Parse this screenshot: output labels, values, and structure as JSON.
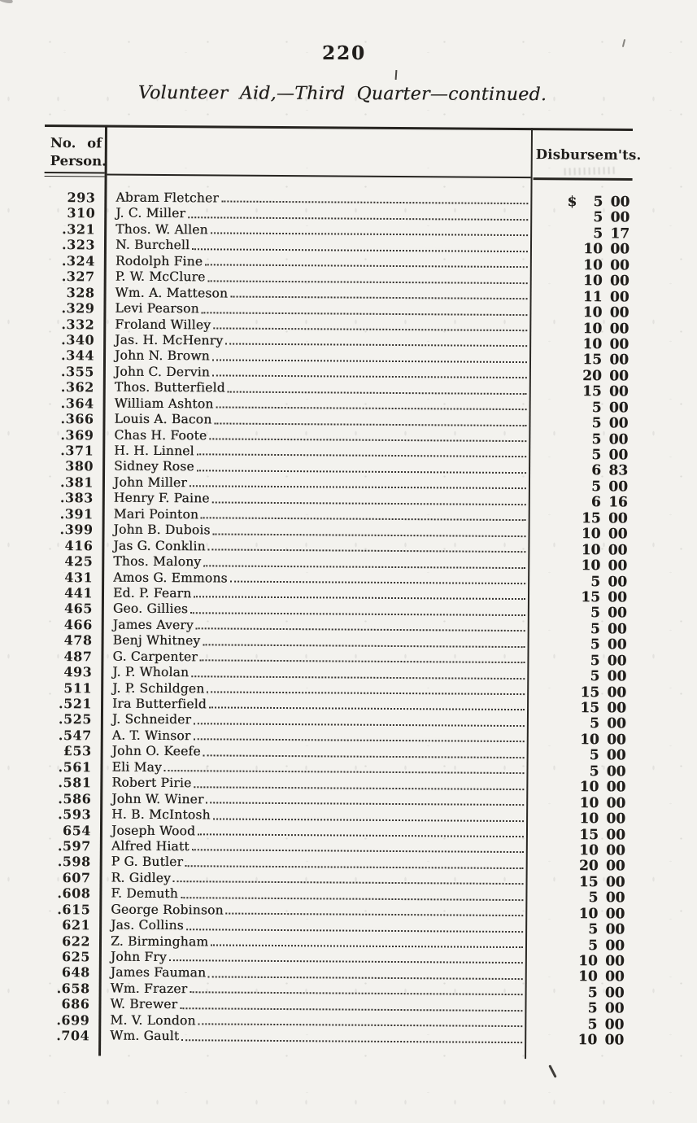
{
  "page": {
    "number": "220",
    "title": "Volunteer Aid,—Third Quarter—continued."
  },
  "table": {
    "person_col_header_line1": "No. of",
    "person_col_header_line2": "Person.",
    "amount_col_header": "Disbursem'ts.",
    "rows": [
      {
        "no": "293",
        "name": "Abram Fletcher",
        "sign": "$",
        "dollars": "5",
        "cents": "00"
      },
      {
        "no": "310",
        "name": "J. C. Miller",
        "sign": "",
        "dollars": "5",
        "cents": "00"
      },
      {
        "no": ".321",
        "name": "Thos. W. Allen",
        "sign": "",
        "dollars": "5",
        "cents": "17"
      },
      {
        "no": ".323",
        "name": "N. Burchell",
        "sign": "",
        "dollars": "10",
        "cents": "00"
      },
      {
        "no": ".324",
        "name": "Rodolph Fine",
        "sign": "",
        "dollars": "10",
        "cents": "00"
      },
      {
        "no": ".327",
        "name": "P. W. McClure",
        "sign": "",
        "dollars": "10",
        "cents": "00"
      },
      {
        "no": "328",
        "name": "Wm. A. Matteson",
        "sign": "",
        "dollars": "11",
        "cents": "00"
      },
      {
        "no": ".329",
        "name": "Levi Pearson",
        "sign": "",
        "dollars": "10",
        "cents": "00"
      },
      {
        "no": ".332",
        "name": "Froland Willey",
        "sign": "",
        "dollars": "10",
        "cents": "00"
      },
      {
        "no": ".340",
        "name": "Jas. H. McHenry",
        "sign": "",
        "dollars": "10",
        "cents": "00"
      },
      {
        "no": ".344",
        "name": "John N. Brown",
        "sign": "",
        "dollars": "15",
        "cents": "00"
      },
      {
        "no": ".355",
        "name": "John C. Dervin",
        "sign": "",
        "dollars": "20",
        "cents": "00"
      },
      {
        "no": ".362",
        "name": "Thos. Butterfield",
        "sign": "",
        "dollars": "15",
        "cents": "00"
      },
      {
        "no": ".364",
        "name": "William Ashton",
        "sign": "",
        "dollars": "5",
        "cents": "00"
      },
      {
        "no": ".366",
        "name": "Louis A. Bacon",
        "sign": "",
        "dollars": "5",
        "cents": "00"
      },
      {
        "no": ".369",
        "name": "Chas H. Foote",
        "sign": "",
        "dollars": "5",
        "cents": "00"
      },
      {
        "no": ".371",
        "name": "H. H. Linnel",
        "sign": "",
        "dollars": "5",
        "cents": "00"
      },
      {
        "no": "380",
        "name": "Sidney Rose",
        "sign": "",
        "dollars": "6",
        "cents": "83"
      },
      {
        "no": ".381",
        "name": "John Miller",
        "sign": "",
        "dollars": "5",
        "cents": "00"
      },
      {
        "no": ".383",
        "name": "Henry F. Paine",
        "sign": "",
        "dollars": "6",
        "cents": "16"
      },
      {
        "no": ".391",
        "name": "Mari Pointon",
        "sign": "",
        "dollars": "15",
        "cents": "00"
      },
      {
        "no": ".399",
        "name": "John B. Dubois",
        "sign": "",
        "dollars": "10",
        "cents": "00"
      },
      {
        "no": "416",
        "name": "Jas G. Conklin",
        "sign": "",
        "dollars": "10",
        "cents": "00"
      },
      {
        "no": "425",
        "name": "Thos. Malony",
        "sign": "",
        "dollars": "10",
        "cents": "00"
      },
      {
        "no": "431",
        "name": "Amos G. Emmons",
        "sign": "",
        "dollars": "5",
        "cents": "00"
      },
      {
        "no": "441",
        "name": "Ed. P. Fearn",
        "sign": "",
        "dollars": "15",
        "cents": "00"
      },
      {
        "no": "465",
        "name": "Geo. Gillies",
        "sign": "",
        "dollars": "5",
        "cents": "00"
      },
      {
        "no": "466",
        "name": "James Avery",
        "sign": "",
        "dollars": "5",
        "cents": "00"
      },
      {
        "no": "478",
        "name": "Benj Whitney",
        "sign": "",
        "dollars": "5",
        "cents": "00"
      },
      {
        "no": "487",
        "name": "G. Carpenter",
        "sign": "",
        "dollars": "5",
        "cents": "00"
      },
      {
        "no": "493",
        "name": "J. P. Wholan",
        "sign": "",
        "dollars": "5",
        "cents": "00"
      },
      {
        "no": "511",
        "name": "J. P. Schildgen",
        "sign": "",
        "dollars": "15",
        "cents": "00"
      },
      {
        "no": ".521",
        "name": "Ira Butterfield",
        "sign": "",
        "dollars": "15",
        "cents": "00"
      },
      {
        "no": ".525",
        "name": "J. Schneider",
        "sign": "",
        "dollars": "5",
        "cents": "00"
      },
      {
        "no": ".547",
        "name": "A. T. Winsor",
        "sign": "",
        "dollars": "10",
        "cents": "00"
      },
      {
        "no": "£53",
        "name": "John O. Keefe",
        "sign": "",
        "dollars": "5",
        "cents": "00"
      },
      {
        "no": ".561",
        "name": "Eli May",
        "sign": "",
        "dollars": "5",
        "cents": "00"
      },
      {
        "no": ".581",
        "name": "Robert Pirie",
        "sign": "",
        "dollars": "10",
        "cents": "00"
      },
      {
        "no": ".586",
        "name": "John W. Winer",
        "sign": "",
        "dollars": "10",
        "cents": "00"
      },
      {
        "no": ".593",
        "name": "H. B. McIntosh",
        "sign": "",
        "dollars": "10",
        "cents": "00"
      },
      {
        "no": "654",
        "name": "Joseph Wood",
        "sign": "",
        "dollars": "15",
        "cents": "00"
      },
      {
        "no": ".597",
        "name": "Alfred Hiatt",
        "sign": "",
        "dollars": "10",
        "cents": "00"
      },
      {
        "no": ".598",
        "name": "P G. Butler",
        "sign": "",
        "dollars": "20",
        "cents": "00"
      },
      {
        "no": "607",
        "name": "R. Gidley",
        "sign": "",
        "dollars": "15",
        "cents": "00"
      },
      {
        "no": ".608",
        "name": "F. Demuth",
        "sign": "",
        "dollars": "5",
        "cents": "00"
      },
      {
        "no": ".615",
        "name": "George Robinson",
        "sign": "",
        "dollars": "10",
        "cents": "00"
      },
      {
        "no": "621",
        "name": "Jas. Collins",
        "sign": "",
        "dollars": "5",
        "cents": "00"
      },
      {
        "no": "622",
        "name": "Z. Birmingham",
        "sign": "",
        "dollars": "5",
        "cents": "00"
      },
      {
        "no": "625",
        "name": "John Fry",
        "sign": "",
        "dollars": "10",
        "cents": "00"
      },
      {
        "no": "648",
        "name": "James Fauman",
        "sign": "",
        "dollars": "10",
        "cents": "00"
      },
      {
        "no": ".658",
        "name": "Wm. Frazer",
        "sign": "",
        "dollars": "5",
        "cents": "00"
      },
      {
        "no": "686",
        "name": "W. Brewer",
        "sign": "",
        "dollars": "5",
        "cents": "00"
      },
      {
        "no": ".699",
        "name": "M. V. London",
        "sign": "",
        "dollars": "5",
        "cents": "00"
      },
      {
        "no": ".704",
        "name": "Wm. Gault",
        "sign": "",
        "dollars": "10",
        "cents": "00"
      }
    ]
  },
  "colors": {
    "paper": "#f3f2ee",
    "ink": "#201e1b"
  }
}
